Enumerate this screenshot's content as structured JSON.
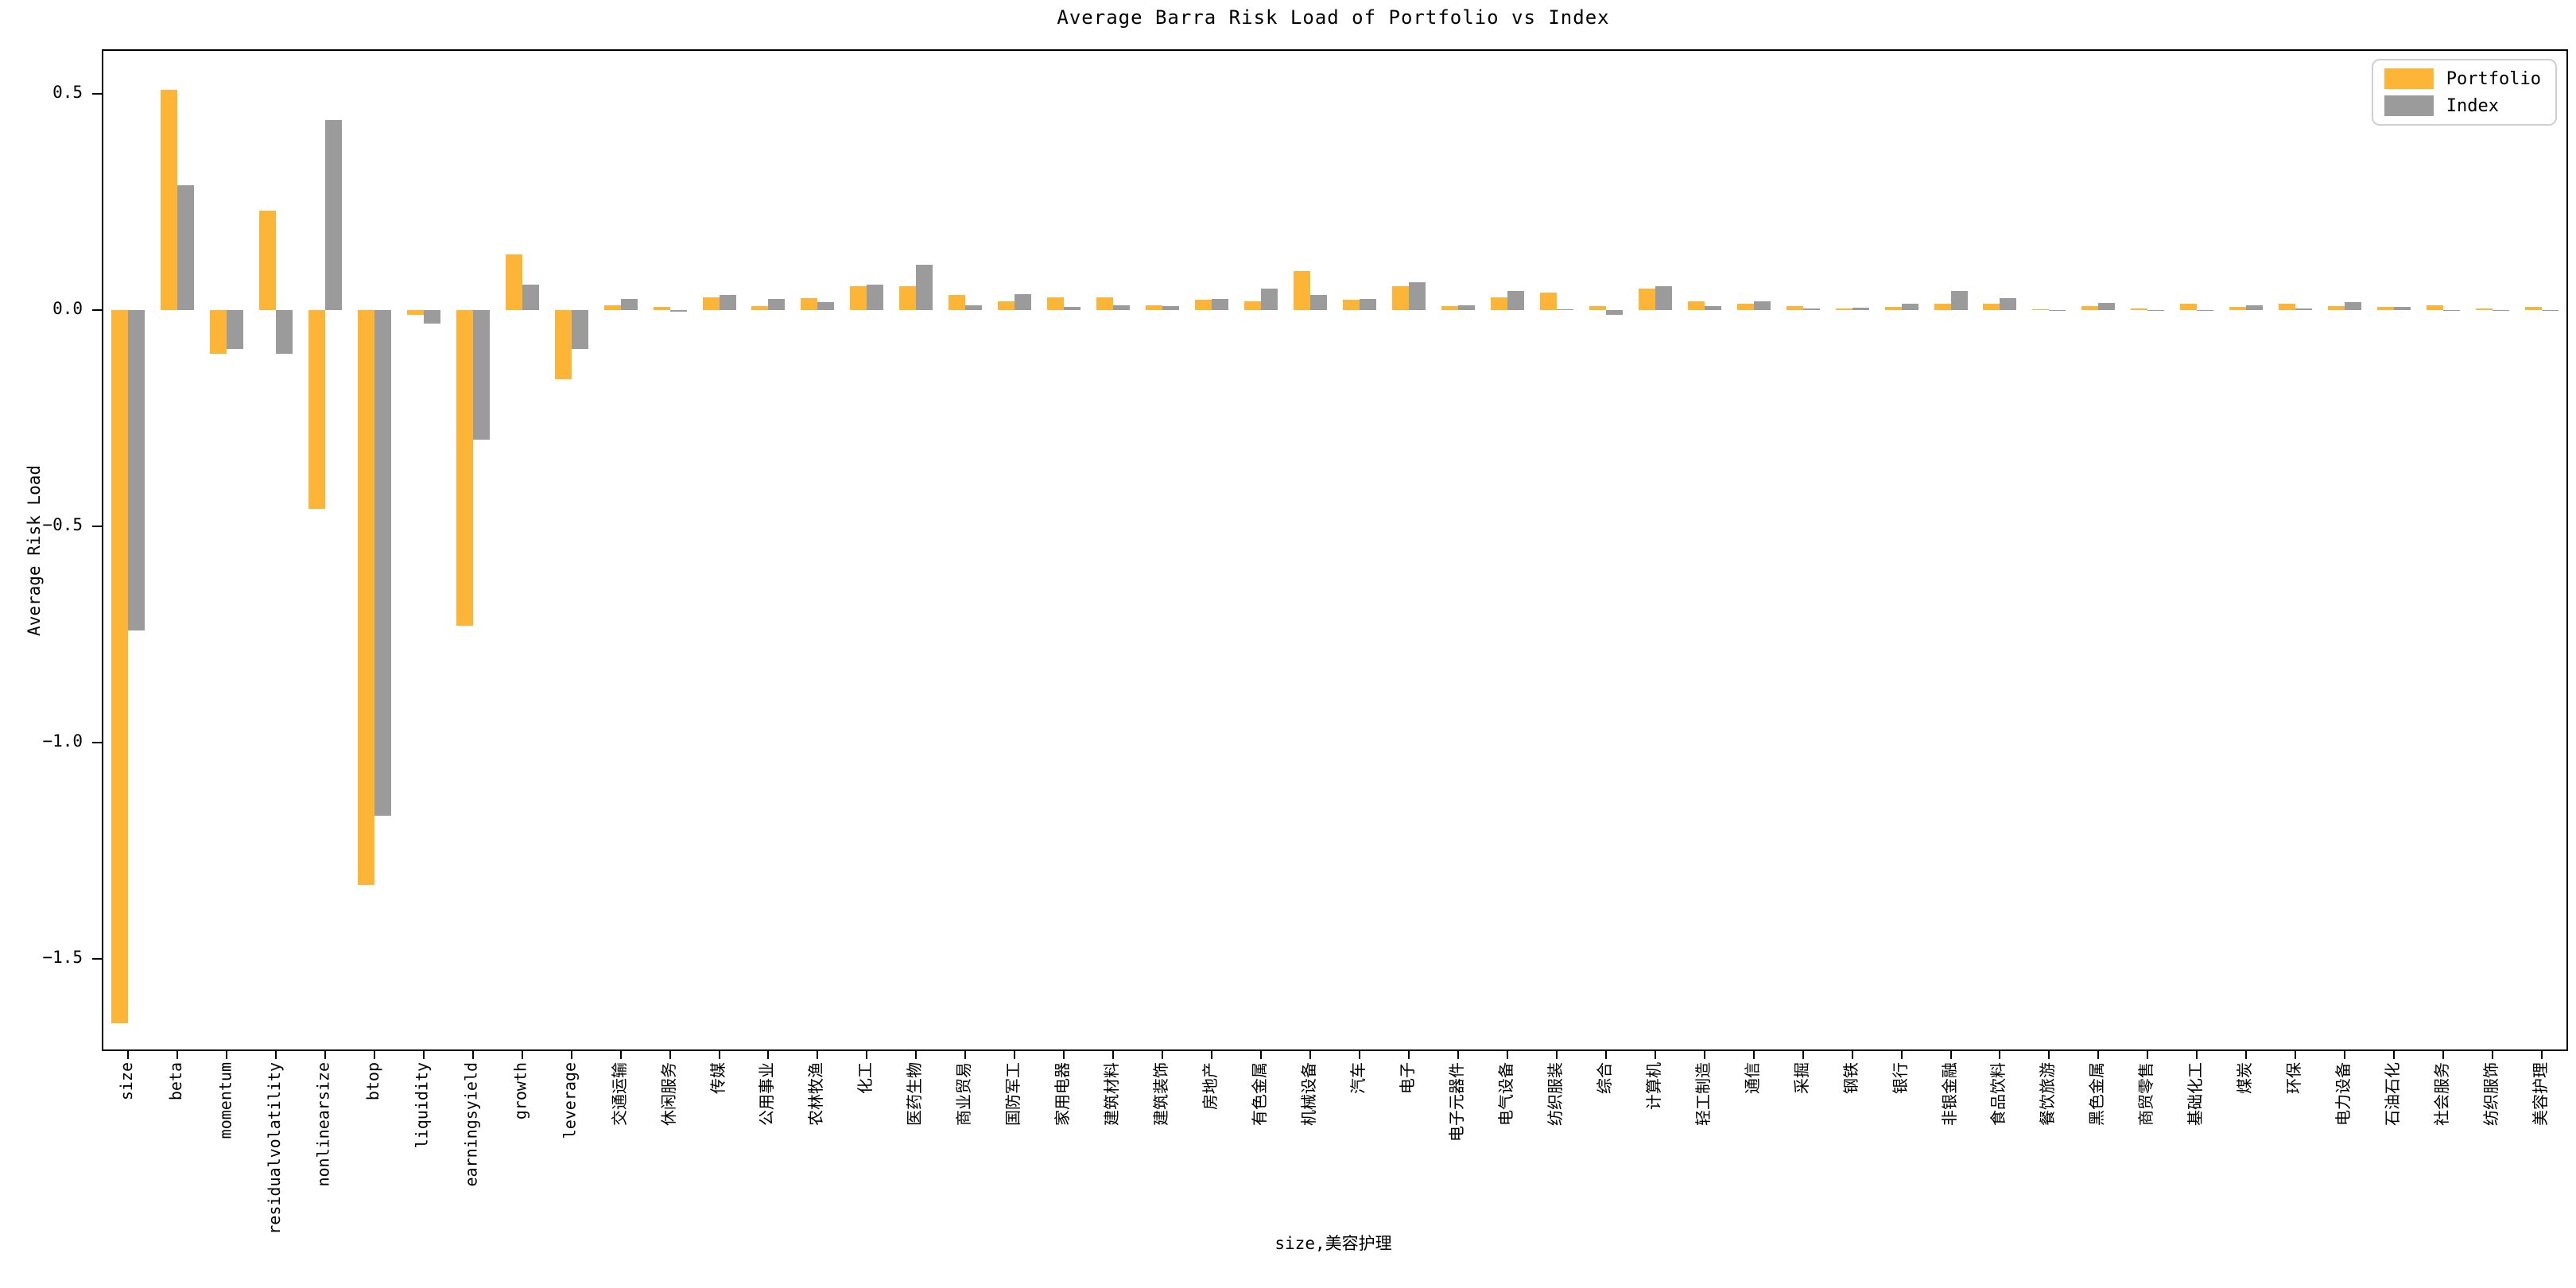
{
  "chart_data": {
    "type": "bar",
    "title": "Average Barra Risk Load of Portfolio vs Index",
    "ylabel": "Average Risk Load",
    "xlabel": "size,美容护理",
    "legend_position": "upper right",
    "grid": false,
    "ylim": [
      -1.71,
      0.6
    ],
    "y_ticks": [
      {
        "label": "0.5",
        "value": 0.5
      },
      {
        "label": "0.0",
        "value": 0.0
      },
      {
        "label": "−0.5",
        "value": -0.5
      },
      {
        "label": "−1.0",
        "value": -1.0
      },
      {
        "label": "−1.5",
        "value": -1.5
      }
    ],
    "categories": [
      "size",
      "beta",
      "momentum",
      "residualvolatility",
      "nonlinearsize",
      "btop",
      "liquidity",
      "earningsyield",
      "growth",
      "leverage",
      "交通运输",
      "休闲服务",
      "传媒",
      "公用事业",
      "农林牧渔",
      "化工",
      "医药生物",
      "商业贸易",
      "国防军工",
      "家用电器",
      "建筑材料",
      "建筑装饰",
      "房地产",
      "有色金属",
      "机械设备",
      "汽车",
      "电子",
      "电子元器件",
      "电气设备",
      "纺织服装",
      "综合",
      "计算机",
      "轻工制造",
      "通信",
      "采掘",
      "钢铁",
      "银行",
      "非银金融",
      "食品饮料",
      "餐饮旅游",
      "黑色金属",
      "商贸零售",
      "基础化工",
      "煤炭",
      "环保",
      "电力设备",
      "石油石化",
      "社会服务",
      "纺织服饰",
      "美容护理"
    ],
    "series": [
      {
        "name": "Portfolio",
        "color": "#FDB537",
        "values": [
          -1.65,
          0.51,
          -0.1,
          0.23,
          -0.46,
          -1.33,
          -0.01,
          -0.73,
          0.13,
          -0.16,
          0.012,
          0.008,
          0.03,
          0.01,
          0.028,
          0.055,
          0.055,
          0.035,
          0.02,
          0.03,
          0.03,
          0.012,
          0.025,
          0.02,
          0.09,
          0.025,
          0.055,
          0.01,
          0.03,
          0.04,
          0.01,
          0.05,
          0.02,
          0.015,
          0.01,
          0.004,
          0.007,
          0.015,
          0.015,
          0.002,
          0.01,
          0.005,
          0.016,
          0.008,
          0.015,
          0.01,
          0.008,
          0.012,
          0.004,
          0.007
        ]
      },
      {
        "name": "Index",
        "color": "#9B9B9B",
        "values": [
          -0.74,
          0.29,
          -0.09,
          -0.1,
          0.44,
          -1.17,
          -0.03,
          -0.3,
          0.06,
          -0.09,
          0.027,
          -0.003,
          0.035,
          0.026,
          0.018,
          0.06,
          0.105,
          0.012,
          0.038,
          0.008,
          0.012,
          0.01,
          0.027,
          0.05,
          0.035,
          0.027,
          0.065,
          0.012,
          0.045,
          0.002,
          -0.01,
          0.055,
          0.01,
          0.02,
          0.005,
          0.006,
          0.015,
          0.045,
          0.028,
          -0.002,
          0.017,
          0.001,
          0.001,
          0.012,
          0.004,
          0.018,
          0.007,
          0.001,
          0.001,
          0.001
        ]
      }
    ]
  }
}
